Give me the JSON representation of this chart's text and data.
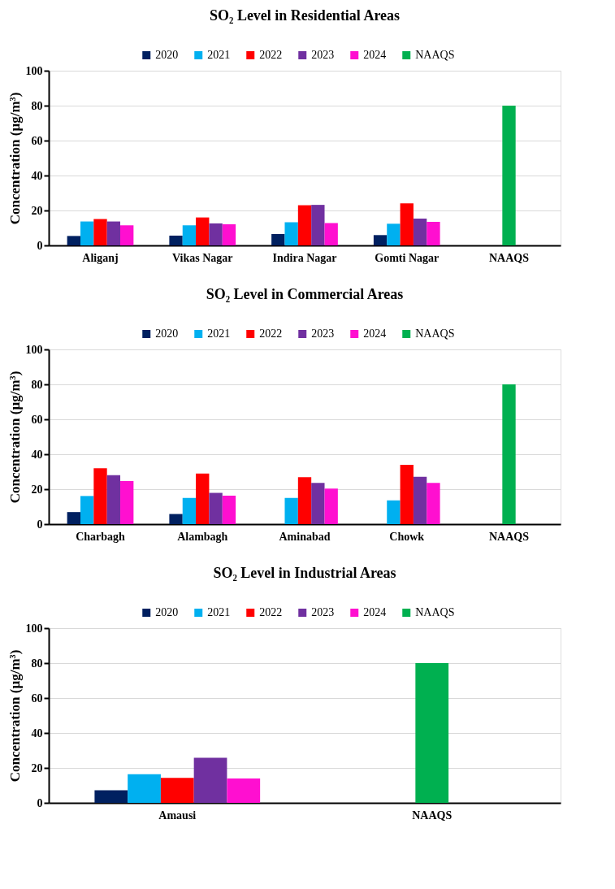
{
  "chart_data": [
    {
      "type": "bar",
      "title": "SO₂ Level in Residential Areas",
      "ylabel": "Concentration (µg/m³)",
      "categories": [
        "Aliganj",
        "Vikas Nagar",
        "Indira Nagar",
        "Gomti Nagar",
        "NAAQS"
      ],
      "ylim": [
        0,
        100
      ],
      "yticks": [
        0,
        20,
        40,
        60,
        80,
        100
      ],
      "grid": "y",
      "legend": "top",
      "series": [
        {
          "name": "2020",
          "color": "#002060",
          "values": [
            5.4,
            5.6,
            6.5,
            5.9,
            null
          ]
        },
        {
          "name": "2021",
          "color": "#00b0f0",
          "values": [
            13.7,
            11.5,
            13.3,
            12.4,
            null
          ]
        },
        {
          "name": "2022",
          "color": "#ff0000",
          "values": [
            15.1,
            16.0,
            23.0,
            24.1,
            null
          ]
        },
        {
          "name": "2023",
          "color": "#7030a0",
          "values": [
            13.7,
            12.6,
            23.2,
            15.3,
            null
          ]
        },
        {
          "name": "2024",
          "color": "#ff0fd0",
          "values": [
            11.5,
            12.1,
            12.8,
            13.5,
            null
          ]
        },
        {
          "name": "NAAQS",
          "color": "#00b050",
          "values": [
            null,
            null,
            null,
            null,
            80
          ]
        }
      ]
    },
    {
      "type": "bar",
      "title": "SO₂ Level in Commercial Areas",
      "ylabel": "Concentration (µg/m³)",
      "categories": [
        "Charbagh",
        "Alambagh",
        "Aminabad",
        "Chowk",
        "NAAQS"
      ],
      "ylim": [
        0,
        100
      ],
      "yticks": [
        0,
        20,
        40,
        60,
        80,
        100
      ],
      "grid": "y",
      "legend": "top",
      "series": [
        {
          "name": "2020",
          "color": "#002060",
          "values": [
            6.9,
            5.8,
            null,
            null,
            null
          ]
        },
        {
          "name": "2021",
          "color": "#00b0f0",
          "values": [
            16.1,
            15.0,
            15.0,
            13.6,
            null
          ]
        },
        {
          "name": "2022",
          "color": "#ff0000",
          "values": [
            32.0,
            29.0,
            26.9,
            34.0,
            null
          ]
        },
        {
          "name": "2023",
          "color": "#7030a0",
          "values": [
            28.0,
            17.9,
            23.6,
            27.1,
            null
          ]
        },
        {
          "name": "2024",
          "color": "#ff0fd0",
          "values": [
            24.7,
            16.3,
            20.4,
            23.6,
            null
          ]
        },
        {
          "name": "NAAQS",
          "color": "#00b050",
          "values": [
            null,
            null,
            null,
            null,
            80
          ]
        }
      ]
    },
    {
      "type": "bar",
      "title": "SO₂ Level in Industrial Areas",
      "ylabel": "Concentration (µg/m³)",
      "categories": [
        "Amausi",
        "NAAQS"
      ],
      "ylim": [
        0,
        100
      ],
      "yticks": [
        0,
        20,
        40,
        60,
        80,
        100
      ],
      "grid": "y",
      "legend": "top",
      "series": [
        {
          "name": "2020",
          "color": "#002060",
          "values": [
            7.2,
            null
          ]
        },
        {
          "name": "2021",
          "color": "#00b0f0",
          "values": [
            16.4,
            null
          ]
        },
        {
          "name": "2022",
          "color": "#ff0000",
          "values": [
            14.3,
            null
          ]
        },
        {
          "name": "2023",
          "color": "#7030a0",
          "values": [
            25.8,
            null
          ]
        },
        {
          "name": "2024",
          "color": "#ff0fd0",
          "values": [
            14.0,
            null
          ]
        },
        {
          "name": "NAAQS",
          "color": "#00b050",
          "values": [
            null,
            80
          ]
        }
      ]
    }
  ]
}
